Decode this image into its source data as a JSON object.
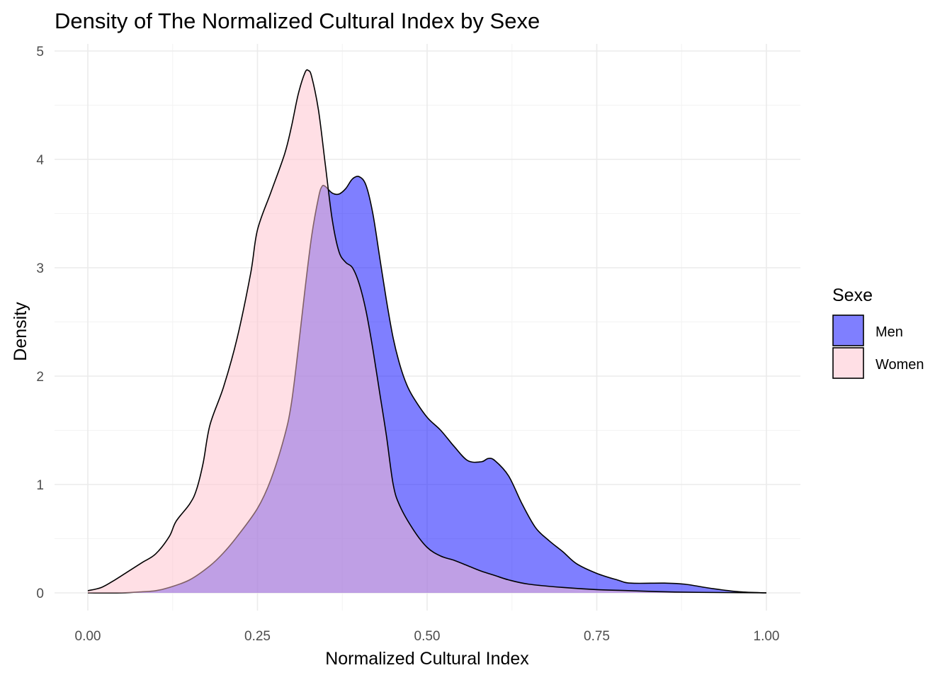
{
  "chart_data": {
    "type": "area",
    "title": "Density of The Normalized Cultural Index by Sexe",
    "xlabel": "Normalized Cultural Index",
    "ylabel": "Density",
    "xlim": [
      0,
      1
    ],
    "ylim": [
      0,
      5
    ],
    "x_ticks": [
      0,
      0.25,
      0.5,
      0.75,
      1
    ],
    "x_tick_labels": [
      "0.00",
      "0.25",
      "0.50",
      "0.75",
      "1.00"
    ],
    "y_ticks": [
      0,
      1,
      2,
      3,
      4,
      5
    ],
    "y_tick_labels": [
      "0",
      "1",
      "2",
      "3",
      "4",
      "5"
    ],
    "grid": true,
    "legend": {
      "title": "Sexe",
      "position": "right"
    },
    "series": [
      {
        "name": "Men",
        "color": "#0000ff",
        "opacity": 0.5,
        "points": [
          [
            0.0,
            0.0
          ],
          [
            0.05,
            0.0
          ],
          [
            0.08,
            0.01
          ],
          [
            0.1,
            0.02
          ],
          [
            0.12,
            0.05
          ],
          [
            0.15,
            0.12
          ],
          [
            0.18,
            0.25
          ],
          [
            0.2,
            0.37
          ],
          [
            0.22,
            0.52
          ],
          [
            0.25,
            0.78
          ],
          [
            0.27,
            1.05
          ],
          [
            0.29,
            1.45
          ],
          [
            0.3,
            1.75
          ],
          [
            0.31,
            2.25
          ],
          [
            0.32,
            2.8
          ],
          [
            0.33,
            3.3
          ],
          [
            0.34,
            3.65
          ],
          [
            0.345,
            3.75
          ],
          [
            0.35,
            3.75
          ],
          [
            0.36,
            3.69
          ],
          [
            0.37,
            3.68
          ],
          [
            0.38,
            3.73
          ],
          [
            0.39,
            3.82
          ],
          [
            0.4,
            3.84
          ],
          [
            0.41,
            3.76
          ],
          [
            0.42,
            3.5
          ],
          [
            0.43,
            3.1
          ],
          [
            0.44,
            2.7
          ],
          [
            0.45,
            2.35
          ],
          [
            0.46,
            2.1
          ],
          [
            0.47,
            1.92
          ],
          [
            0.48,
            1.8
          ],
          [
            0.5,
            1.62
          ],
          [
            0.52,
            1.5
          ],
          [
            0.54,
            1.35
          ],
          [
            0.56,
            1.22
          ],
          [
            0.58,
            1.21
          ],
          [
            0.59,
            1.24
          ],
          [
            0.6,
            1.22
          ],
          [
            0.62,
            1.08
          ],
          [
            0.64,
            0.82
          ],
          [
            0.66,
            0.6
          ],
          [
            0.68,
            0.48
          ],
          [
            0.7,
            0.38
          ],
          [
            0.72,
            0.27
          ],
          [
            0.75,
            0.18
          ],
          [
            0.78,
            0.12
          ],
          [
            0.8,
            0.09
          ],
          [
            0.85,
            0.09
          ],
          [
            0.88,
            0.08
          ],
          [
            0.92,
            0.04
          ],
          [
            0.96,
            0.01
          ],
          [
            1.0,
            0.0
          ]
        ]
      },
      {
        "name": "Women",
        "color": "#ffc0cb",
        "opacity": 0.5,
        "points": [
          [
            0.0,
            0.02
          ],
          [
            0.02,
            0.05
          ],
          [
            0.04,
            0.12
          ],
          [
            0.06,
            0.2
          ],
          [
            0.08,
            0.28
          ],
          [
            0.1,
            0.36
          ],
          [
            0.12,
            0.52
          ],
          [
            0.13,
            0.66
          ],
          [
            0.15,
            0.82
          ],
          [
            0.16,
            0.95
          ],
          [
            0.17,
            1.2
          ],
          [
            0.18,
            1.55
          ],
          [
            0.2,
            1.9
          ],
          [
            0.22,
            2.35
          ],
          [
            0.24,
            2.95
          ],
          [
            0.25,
            3.35
          ],
          [
            0.27,
            3.7
          ],
          [
            0.29,
            4.05
          ],
          [
            0.3,
            4.3
          ],
          [
            0.31,
            4.6
          ],
          [
            0.32,
            4.8
          ],
          [
            0.325,
            4.82
          ],
          [
            0.33,
            4.76
          ],
          [
            0.34,
            4.45
          ],
          [
            0.35,
            3.95
          ],
          [
            0.36,
            3.45
          ],
          [
            0.37,
            3.15
          ],
          [
            0.38,
            3.05
          ],
          [
            0.39,
            3.0
          ],
          [
            0.4,
            2.85
          ],
          [
            0.41,
            2.6
          ],
          [
            0.42,
            2.25
          ],
          [
            0.43,
            1.85
          ],
          [
            0.44,
            1.45
          ],
          [
            0.45,
            1.0
          ],
          [
            0.46,
            0.8
          ],
          [
            0.48,
            0.58
          ],
          [
            0.5,
            0.42
          ],
          [
            0.52,
            0.34
          ],
          [
            0.54,
            0.3
          ],
          [
            0.56,
            0.25
          ],
          [
            0.58,
            0.2
          ],
          [
            0.6,
            0.16
          ],
          [
            0.62,
            0.12
          ],
          [
            0.65,
            0.08
          ],
          [
            0.7,
            0.05
          ],
          [
            0.75,
            0.03
          ],
          [
            0.8,
            0.02
          ],
          [
            0.85,
            0.01
          ],
          [
            0.9,
            0.005
          ],
          [
            1.0,
            0.0
          ]
        ]
      }
    ]
  }
}
